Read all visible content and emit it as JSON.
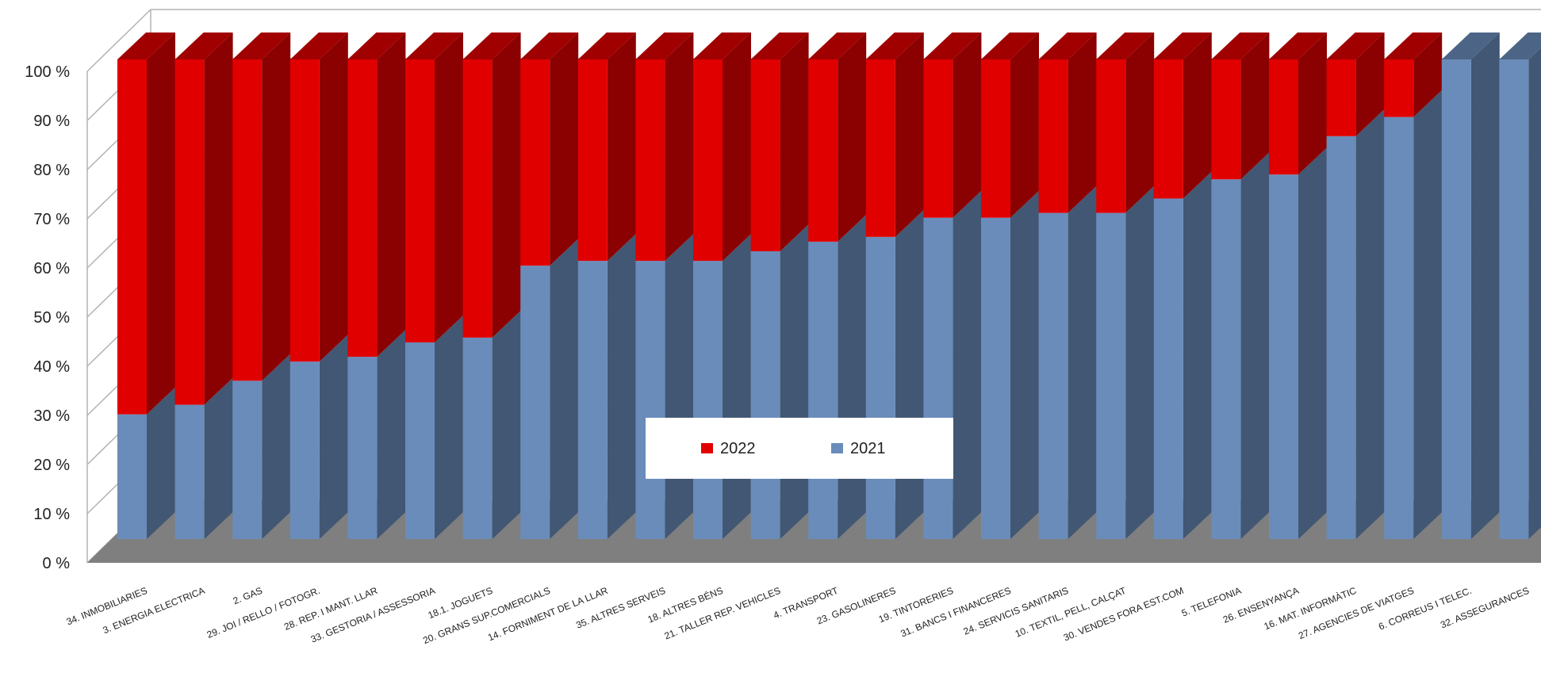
{
  "chart_data": {
    "type": "bar",
    "stacked": "percent",
    "three_d": true,
    "categories": [
      "34. INMOBILIARIES",
      "3. ENERGIA ELECTRICA",
      "2. GAS",
      "29. JOI / RELLO / FOTOGR.",
      "28. REP. I MANT. LLAR",
      "33. GESTORIA / ASSESSORIA",
      "18.1. JOGUETS",
      "20. GRANS SUP.COMERCIALS",
      "14. FORNIMENT DE LA LLAR",
      "35. ALTRES SERVEIS",
      "18. ALTRES BÉNS",
      "21. TALLER REP. VEHICLES",
      "4. TRANSPORT",
      "23. GASOLINERES",
      "19. TINTORERIES",
      "31. BANCS I FINANCERES",
      "24. SERVICIS SANITARIS",
      "10. TEXTIL, PELL, CALÇAT",
      "30. VENDES FORA EST.COM",
      "5. TELEFONIA",
      "26. ENSENYANÇA",
      "16. MAT. INFORMÀTIC",
      "27. AGENCIES DE VIATGES",
      "6. CORREUS I TELEC.",
      "32. ASSEGURANCES"
    ],
    "series": [
      {
        "name": "2021",
        "color": "#6a8cba",
        "values": [
          26,
          28,
          33,
          37,
          38,
          41,
          42,
          57,
          58,
          58,
          58,
          60,
          62,
          63,
          67,
          67,
          68,
          68,
          71,
          75,
          76,
          84,
          88,
          100,
          100
        ]
      },
      {
        "name": "2022",
        "color": "#e00000",
        "values": [
          74,
          72,
          67,
          63,
          62,
          59,
          58,
          43,
          42,
          42,
          42,
          40,
          38,
          37,
          33,
          33,
          32,
          32,
          29,
          25,
          24,
          16,
          12,
          0,
          0
        ]
      }
    ],
    "yticks": [
      "0 %",
      "10 %",
      "20 %",
      "30 %",
      "40 %",
      "50 %",
      "60 %",
      "70 %",
      "80 %",
      "90 %",
      "100 %"
    ],
    "ylim": [
      0,
      100
    ],
    "grid": true,
    "legend": {
      "position": "center",
      "entries": [
        "2022",
        "2021"
      ]
    },
    "floor_color": "#7f7f7f"
  }
}
